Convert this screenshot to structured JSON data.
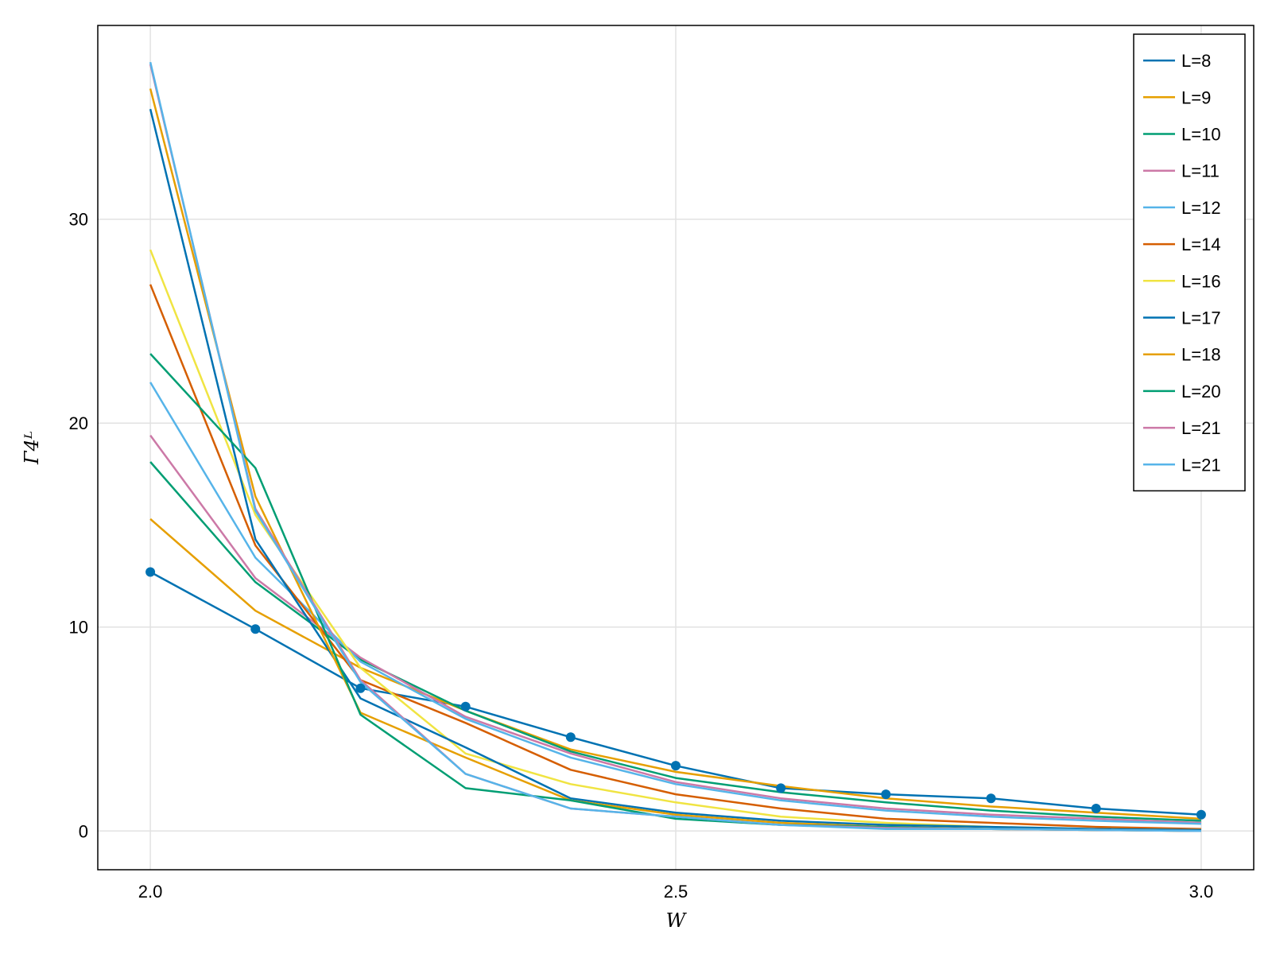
{
  "chart_data": {
    "type": "line",
    "title": "",
    "xlabel": "W",
    "ylabel": "Γ4ᴸ",
    "xlim": [
      1.95,
      3.05
    ],
    "ylim": [
      -1.9,
      39.5
    ],
    "xticks": [
      2.0,
      2.5,
      3.0
    ],
    "xtick_labels": [
      "2.0",
      "2.5",
      "3.0"
    ],
    "yticks": [
      0,
      10,
      20,
      30
    ],
    "ytick_labels": [
      "0",
      "10",
      "20",
      "30"
    ],
    "grid": true,
    "legend_position": "top-right",
    "x": [
      2.0,
      2.1,
      2.2,
      2.3,
      2.4,
      2.5,
      2.6,
      2.7,
      2.8,
      2.9,
      3.0
    ],
    "series": [
      {
        "name": "L=8",
        "color": "#0072B2",
        "markers": true,
        "values": [
          12.7,
          9.9,
          7.0,
          6.1,
          4.6,
          3.2,
          2.1,
          1.8,
          1.6,
          1.1,
          0.8
        ]
      },
      {
        "name": "L=9",
        "color": "#E69F00",
        "markers": false,
        "values": [
          15.3,
          10.8,
          8.0,
          5.9,
          4.0,
          2.9,
          2.2,
          1.6,
          1.2,
          0.9,
          0.6
        ]
      },
      {
        "name": "L=10",
        "color": "#009E73",
        "markers": false,
        "values": [
          18.1,
          12.2,
          8.4,
          5.9,
          3.9,
          2.6,
          1.9,
          1.4,
          1.0,
          0.7,
          0.5
        ]
      },
      {
        "name": "L=11",
        "color": "#CC79A7",
        "markers": false,
        "values": [
          19.4,
          12.4,
          8.5,
          5.6,
          3.8,
          2.4,
          1.6,
          1.1,
          0.8,
          0.6,
          0.4
        ]
      },
      {
        "name": "L=12",
        "color": "#56B4E9",
        "markers": false,
        "values": [
          22.0,
          13.4,
          8.3,
          5.5,
          3.6,
          2.3,
          1.5,
          1.0,
          0.7,
          0.5,
          0.35
        ]
      },
      {
        "name": "L=14",
        "color": "#D55E00",
        "markers": false,
        "values": [
          26.8,
          14.0,
          7.4,
          5.3,
          3.0,
          1.8,
          1.1,
          0.6,
          0.4,
          0.2,
          0.1
        ]
      },
      {
        "name": "L=16",
        "color": "#F0E442",
        "markers": false,
        "values": [
          28.5,
          15.5,
          8.0,
          3.8,
          2.3,
          1.4,
          0.7,
          0.4,
          0.2,
          0.1,
          0.05
        ]
      },
      {
        "name": "L=17",
        "color": "#0072B2",
        "markers": false,
        "values": [
          35.4,
          14.3,
          6.5,
          4.1,
          1.6,
          0.9,
          0.5,
          0.3,
          0.2,
          0.1,
          0.05
        ]
      },
      {
        "name": "L=18",
        "color": "#E69F00",
        "markers": false,
        "values": [
          36.4,
          16.4,
          5.8,
          3.6,
          1.5,
          0.8,
          0.4,
          0.2,
          0.1,
          0.05,
          0.0
        ]
      },
      {
        "name": "L=20",
        "color": "#009E73",
        "markers": false,
        "values": [
          23.4,
          17.8,
          5.7,
          2.1,
          1.5,
          0.6,
          0.3,
          0.2,
          0.1,
          0.05,
          0.0
        ]
      },
      {
        "name": "L=21",
        "color": "#CC79A7",
        "markers": false,
        "values": [
          37.6,
          15.8,
          7.4,
          2.8,
          1.1,
          0.7,
          0.3,
          0.15,
          0.1,
          0.05,
          0.0
        ]
      },
      {
        "name": "L=21",
        "color": "#56B4E9",
        "markers": false,
        "values": [
          37.7,
          15.7,
          7.3,
          2.8,
          1.1,
          0.7,
          0.3,
          0.1,
          0.1,
          0.05,
          0.0
        ]
      }
    ]
  }
}
